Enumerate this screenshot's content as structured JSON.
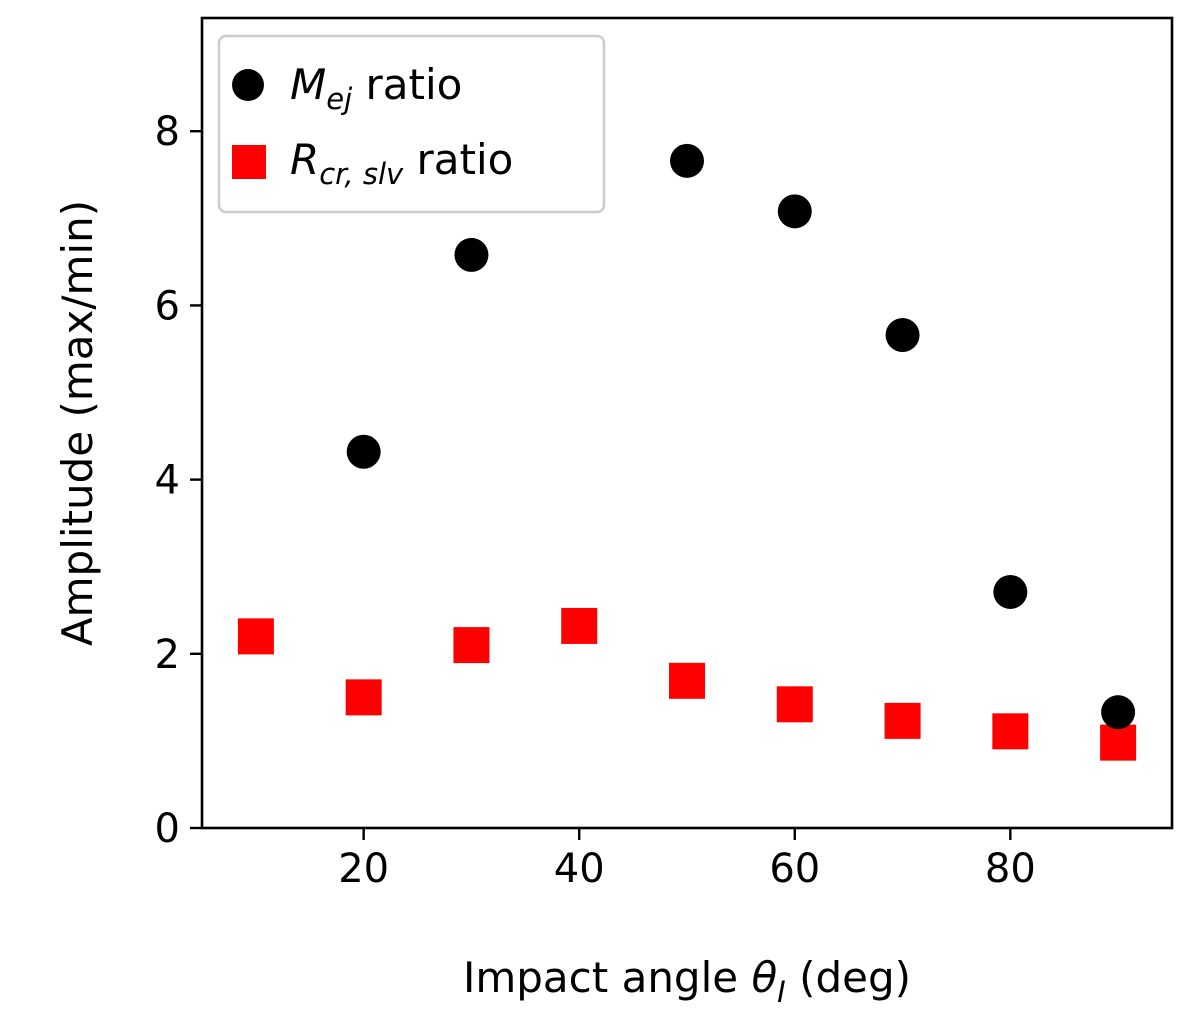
{
  "chart_data": {
    "type": "scatter",
    "xlabel": {
      "prefix": "Impact angle ",
      "symbol": "θ",
      "subscript": "I",
      "suffix": " (deg)"
    },
    "ylabel": "Amplitude (max/min)",
    "xlim": [
      5,
      95
    ],
    "ylim": [
      0,
      9.3
    ],
    "xticks": [
      20,
      40,
      60,
      80
    ],
    "yticks": [
      0,
      2,
      4,
      6,
      8
    ],
    "legend_position": "top-left",
    "series": [
      {
        "name": "M_ej ratio",
        "label_main": "M",
        "label_sub": "ej",
        "label_suffix": " ratio",
        "marker": "circle",
        "color": "#000000",
        "points": [
          {
            "x": 20,
            "y": 4.32
          },
          {
            "x": 30,
            "y": 6.58
          },
          {
            "x": 50,
            "y": 7.66
          },
          {
            "x": 60,
            "y": 7.08
          },
          {
            "x": 70,
            "y": 5.66
          },
          {
            "x": 80,
            "y": 2.71
          },
          {
            "x": 90,
            "y": 1.33
          }
        ]
      },
      {
        "name": "R_cr,slv ratio",
        "label_main": "R",
        "label_sub": "cr, slv",
        "label_suffix": " ratio",
        "marker": "square",
        "color": "#ff0000",
        "points": [
          {
            "x": 10,
            "y": 2.2
          },
          {
            "x": 20,
            "y": 1.5
          },
          {
            "x": 30,
            "y": 2.1
          },
          {
            "x": 40,
            "y": 2.32
          },
          {
            "x": 50,
            "y": 1.69
          },
          {
            "x": 60,
            "y": 1.42
          },
          {
            "x": 70,
            "y": 1.23
          },
          {
            "x": 80,
            "y": 1.11
          },
          {
            "x": 90,
            "y": 0.98
          }
        ]
      }
    ]
  }
}
